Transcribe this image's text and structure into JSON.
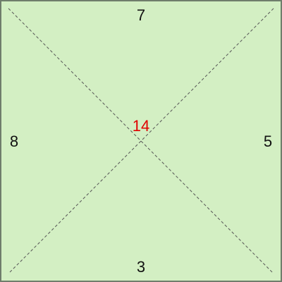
{
  "colors": {
    "fill": "#d3efc3",
    "border": "#6f7d6c",
    "diagonal": "#555555",
    "edge_number": "#111111",
    "center_number": "#e00000"
  },
  "numbers": {
    "top": "7",
    "bottom": "3",
    "left": "8",
    "right": "5",
    "center": "14"
  }
}
